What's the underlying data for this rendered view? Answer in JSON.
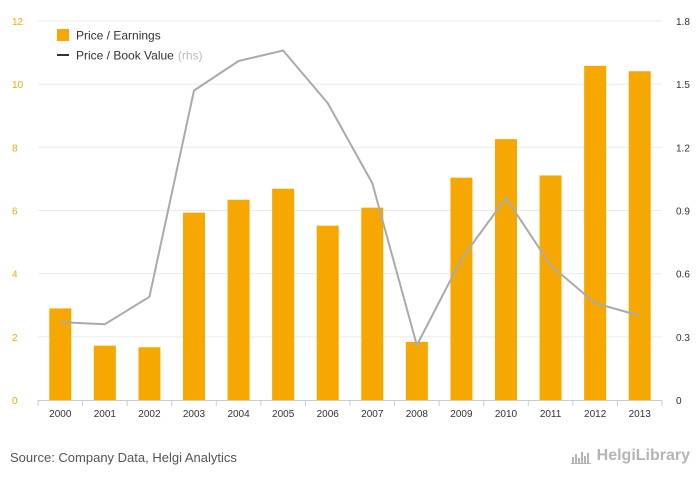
{
  "chart_data": {
    "type": "bar",
    "categories": [
      "2000",
      "2001",
      "2002",
      "2003",
      "2004",
      "2005",
      "2006",
      "2007",
      "2008",
      "2009",
      "2010",
      "2011",
      "2012",
      "2013"
    ],
    "series": [
      {
        "name": "Price / Earnings",
        "type": "bar",
        "axis": "left",
        "color": "#F7A800",
        "values": [
          2.9,
          1.72,
          1.67,
          5.93,
          6.34,
          6.69,
          5.52,
          6.09,
          1.84,
          7.04,
          8.26,
          7.11,
          10.58,
          10.41
        ]
      },
      {
        "name": "Price / Book Value",
        "name_suffix": "(rhs)",
        "type": "line",
        "axis": "right",
        "color": "#AAAAAA",
        "values": [
          0.37,
          0.36,
          0.49,
          1.47,
          1.61,
          1.66,
          1.41,
          1.03,
          0.26,
          0.67,
          0.96,
          0.64,
          0.46,
          0.4
        ]
      }
    ],
    "y_left": {
      "min": 0,
      "max": 12,
      "ticks": [
        "0",
        "2",
        "4",
        "6",
        "8",
        "10",
        "12"
      ]
    },
    "y_right": {
      "min": 0,
      "max": 1.8,
      "ticks": [
        "0",
        "0.3",
        "0.6",
        "0.9",
        "1.2",
        "1.5",
        "1.8"
      ]
    },
    "grid": true,
    "legend_position": "top-left"
  },
  "footer": {
    "source": "Source: Company Data, Helgi Analytics",
    "brand": "HelgiLibrary"
  }
}
